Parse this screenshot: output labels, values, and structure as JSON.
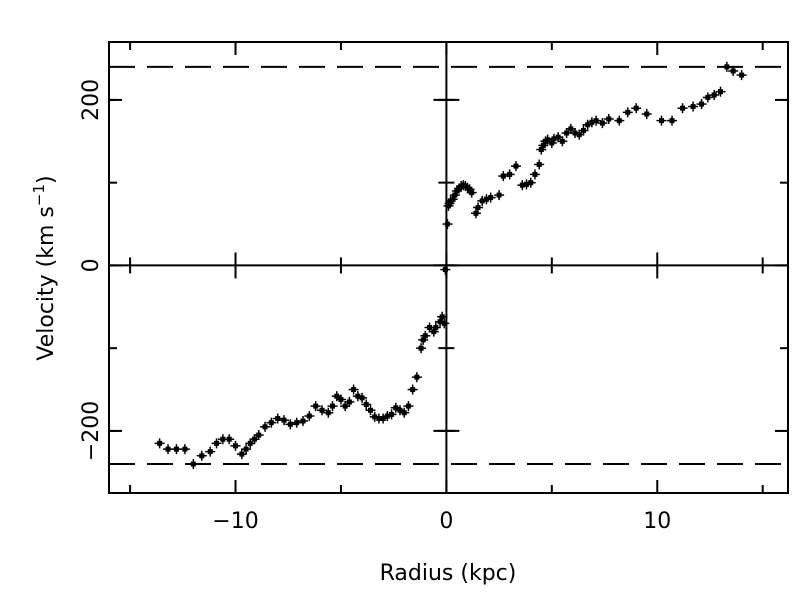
{
  "chart_data": {
    "type": "scatter",
    "title": "",
    "xlabel": "Radius (kpc)",
    "ylabel_main": "Velocity (km s",
    "ylabel_exp": "−1",
    "ylabel_close": ")",
    "xlim": [
      -16,
      16.2
    ],
    "ylim": [
      -275,
      270
    ],
    "xticks": [
      {
        "value": -10,
        "label": "−10"
      },
      {
        "value": 0,
        "label": "0"
      },
      {
        "value": 10,
        "label": "10"
      }
    ],
    "yticks": [
      {
        "value": -200,
        "label": "−200"
      },
      {
        "value": 0,
        "label": "0"
      },
      {
        "value": 200,
        "label": "200"
      }
    ],
    "reference_lines": [
      240,
      -240
    ],
    "grid": false,
    "colors": {
      "marker": "#000000",
      "axis": "#000000",
      "background": "#ffffff"
    },
    "series": [
      {
        "points": [
          [
            0.05,
            50
          ],
          [
            0.1,
            72
          ],
          [
            0.15,
            75
          ],
          [
            0.2,
            78
          ],
          [
            0.3,
            80
          ],
          [
            0.4,
            85
          ],
          [
            0.5,
            90
          ],
          [
            0.6,
            93
          ],
          [
            0.7,
            96
          ],
          [
            0.8,
            97
          ],
          [
            0.9,
            96
          ],
          [
            1.0,
            94
          ],
          [
            1.1,
            92
          ],
          [
            1.2,
            88
          ],
          [
            1.4,
            63
          ],
          [
            1.5,
            70
          ],
          [
            1.7,
            78
          ],
          [
            1.9,
            80
          ],
          [
            2.1,
            82
          ],
          [
            2.5,
            85
          ],
          [
            2.7,
            108
          ],
          [
            3.0,
            110
          ],
          [
            3.3,
            120
          ],
          [
            3.6,
            97
          ],
          [
            3.8,
            98
          ],
          [
            4.0,
            100
          ],
          [
            4.2,
            110
          ],
          [
            4.4,
            122
          ],
          [
            4.5,
            140
          ],
          [
            4.6,
            145
          ],
          [
            4.7,
            150
          ],
          [
            4.8,
            152
          ],
          [
            5.0,
            148
          ],
          [
            5.1,
            153
          ],
          [
            5.3,
            155
          ],
          [
            5.5,
            150
          ],
          [
            5.7,
            160
          ],
          [
            5.9,
            165
          ],
          [
            6.1,
            160
          ],
          [
            6.3,
            158
          ],
          [
            6.5,
            163
          ],
          [
            6.7,
            170
          ],
          [
            6.9,
            173
          ],
          [
            7.1,
            175
          ],
          [
            7.4,
            172
          ],
          [
            7.7,
            177
          ],
          [
            8.2,
            175
          ],
          [
            8.6,
            185
          ],
          [
            9.0,
            190
          ],
          [
            9.5,
            183
          ],
          [
            10.2,
            175
          ],
          [
            10.7,
            175
          ],
          [
            11.2,
            190
          ],
          [
            11.7,
            192
          ],
          [
            12.1,
            195
          ],
          [
            12.4,
            203
          ],
          [
            12.7,
            206
          ],
          [
            13.0,
            210
          ],
          [
            13.3,
            240
          ],
          [
            13.6,
            235
          ],
          [
            14.0,
            230
          ]
        ]
      },
      {
        "points": [
          [
            -0.05,
            -5
          ],
          [
            -0.1,
            -70
          ],
          [
            -0.2,
            -62
          ],
          [
            -0.3,
            -68
          ],
          [
            -0.5,
            -75
          ],
          [
            -0.6,
            -80
          ],
          [
            -0.8,
            -75
          ],
          [
            -1.0,
            -85
          ],
          [
            -1.1,
            -90
          ],
          [
            -1.2,
            -100
          ],
          [
            -1.4,
            -135
          ],
          [
            -1.6,
            -150
          ],
          [
            -1.8,
            -170
          ],
          [
            -2.0,
            -178
          ],
          [
            -2.2,
            -175
          ],
          [
            -2.4,
            -172
          ],
          [
            -2.6,
            -180
          ],
          [
            -2.8,
            -182
          ],
          [
            -3.0,
            -185
          ],
          [
            -3.2,
            -185
          ],
          [
            -3.4,
            -183
          ],
          [
            -3.6,
            -175
          ],
          [
            -3.8,
            -168
          ],
          [
            -4.0,
            -160
          ],
          [
            -4.2,
            -158
          ],
          [
            -4.4,
            -150
          ],
          [
            -4.6,
            -165
          ],
          [
            -4.8,
            -170
          ],
          [
            -5.0,
            -162
          ],
          [
            -5.2,
            -158
          ],
          [
            -5.4,
            -170
          ],
          [
            -5.6,
            -178
          ],
          [
            -5.9,
            -175
          ],
          [
            -6.2,
            -170
          ],
          [
            -6.5,
            -182
          ],
          [
            -6.8,
            -188
          ],
          [
            -7.1,
            -190
          ],
          [
            -7.4,
            -192
          ],
          [
            -7.7,
            -187
          ],
          [
            -8.0,
            -185
          ],
          [
            -8.3,
            -190
          ],
          [
            -8.6,
            -195
          ],
          [
            -8.9,
            -205
          ],
          [
            -9.1,
            -210
          ],
          [
            -9.3,
            -215
          ],
          [
            -9.5,
            -222
          ],
          [
            -9.7,
            -228
          ],
          [
            -10.0,
            -218
          ],
          [
            -10.3,
            -210
          ],
          [
            -10.6,
            -210
          ],
          [
            -10.9,
            -215
          ],
          [
            -11.2,
            -225
          ],
          [
            -11.6,
            -230
          ],
          [
            -12.0,
            -240
          ],
          [
            -12.4,
            -222
          ],
          [
            -12.8,
            -222
          ],
          [
            -13.2,
            -222
          ],
          [
            -13.6,
            -215
          ]
        ]
      }
    ]
  }
}
